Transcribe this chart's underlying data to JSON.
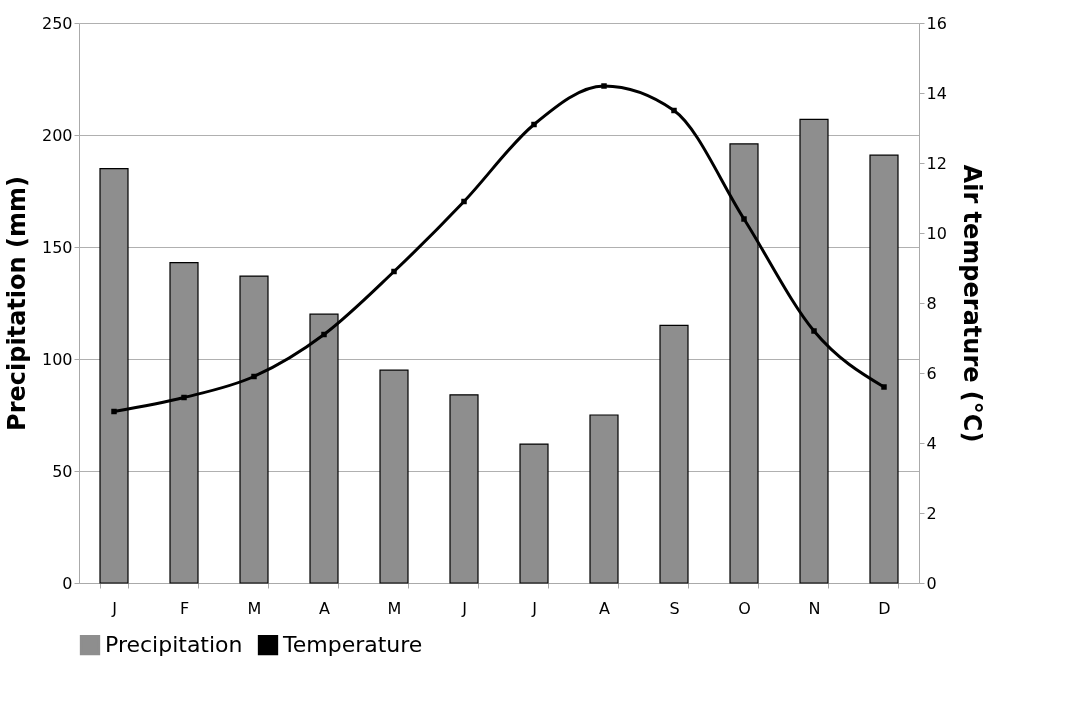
{
  "chart_data": {
    "type": "bar",
    "categories": [
      "J",
      "F",
      "M",
      "A",
      "M",
      "J",
      "J",
      "A",
      "S",
      "O",
      "N",
      "D"
    ],
    "ylabel": "Precipitation (mm)",
    "y2label": "Air temperature (°C)",
    "ylim": [
      0,
      250
    ],
    "yticks": [
      0,
      50,
      100,
      150,
      200,
      250
    ],
    "y2lim": [
      0,
      16
    ],
    "y2ticks": [
      0,
      2,
      4,
      6,
      8,
      10,
      12,
      14,
      16
    ],
    "grid": "y",
    "legend": "bottom",
    "series": [
      {
        "name": "Precipitation",
        "color": "#8e8e8e",
        "values": [
          185,
          143,
          137,
          120,
          95,
          84,
          62,
          75,
          115,
          196,
          207,
          191
        ]
      },
      {
        "name": "Temperature",
        "type": "line",
        "axis": "y2",
        "color": "#000000",
        "marker": "square",
        "values": [
          4.9,
          5.3,
          5.9,
          7.1,
          8.9,
          10.9,
          13.1,
          14.2,
          13.5,
          10.4,
          7.2,
          5.6
        ]
      }
    ]
  }
}
